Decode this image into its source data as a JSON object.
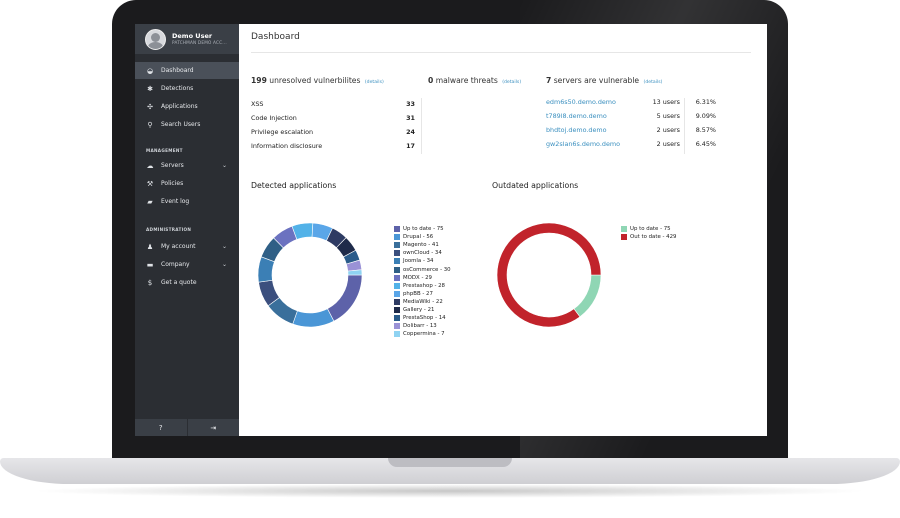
{
  "user": {
    "name": "Demo User",
    "subtitle": "PATCHMAN DEMO ACC..."
  },
  "sidebar": {
    "items": [
      {
        "label": "Dashboard",
        "icon": "dashboard-icon",
        "glyph": "◒"
      },
      {
        "label": "Detections",
        "icon": "bug-icon",
        "glyph": "✱"
      },
      {
        "label": "Applications",
        "icon": "puzzle-icon",
        "glyph": "✣"
      },
      {
        "label": "Search Users",
        "icon": "search-icon",
        "glyph": "⚲"
      }
    ],
    "management_label": "MANAGEMENT",
    "management": [
      {
        "label": "Servers",
        "icon": "cloud-icon",
        "glyph": "☁"
      },
      {
        "label": "Policies",
        "icon": "gavel-icon",
        "glyph": "⚒"
      },
      {
        "label": "Event log",
        "icon": "book-icon",
        "glyph": "▰"
      }
    ],
    "administration_label": "ADMINISTRATION",
    "administration": [
      {
        "label": "My account",
        "icon": "user-icon",
        "glyph": "♟"
      },
      {
        "label": "Company",
        "icon": "briefcase-icon",
        "glyph": "▬"
      },
      {
        "label": "Get a quote",
        "icon": "money-icon",
        "glyph": "$"
      }
    ],
    "bottom": {
      "help": "?",
      "logout": "⇥"
    }
  },
  "page": {
    "title": "Dashboard"
  },
  "summary": {
    "vuln_count": "199",
    "vuln_text": "unresolved vulnerbilites",
    "malware_count": "0",
    "malware_text": "malware threats",
    "servers_count": "7",
    "servers_text": "servers are vulnerable",
    "details": "(details)"
  },
  "vulnerabilities": [
    {
      "name": "XSS",
      "count": "33"
    },
    {
      "name": "Code Injection",
      "count": "31"
    },
    {
      "name": "Privilege escalation",
      "count": "24"
    },
    {
      "name": "Information disclosure",
      "count": "17"
    }
  ],
  "servers": [
    {
      "host": "edm6s50.demo.demo",
      "users": "13 users",
      "pct": "6.31%"
    },
    {
      "host": "t789l8.demo.demo",
      "users": "5 users",
      "pct": "9.09%"
    },
    {
      "host": "bhdtoj.demo.demo",
      "users": "2 users",
      "pct": "8.57%"
    },
    {
      "host": "gw2slan6s.demo.demo",
      "users": "2 users",
      "pct": "6.45%"
    }
  ],
  "sections": {
    "detected": "Detected applications",
    "outdated": "Outdated applications"
  },
  "chart_data": [
    {
      "type": "pie",
      "title": "Detected applications",
      "categories": [
        "Up to date",
        "Drupal",
        "Magento",
        "ownCloud",
        "Joomla",
        "osCommerce",
        "MODX",
        "Prestashop",
        "phpBB",
        "MediaWiki",
        "Gallery",
        "PrestaShop",
        "Dolibarr",
        "Coppermina"
      ],
      "values": [
        75,
        56,
        41,
        34,
        34,
        30,
        29,
        28,
        27,
        22,
        21,
        14,
        13,
        7
      ],
      "colors": [
        "#5d62a9",
        "#4a96d6",
        "#3a6f9b",
        "#3b4f7e",
        "#3b7fb5",
        "#2f5f86",
        "#6b72c0",
        "#52b2e8",
        "#5aa6e8",
        "#2e3b63",
        "#1f2b4a",
        "#2a5b8a",
        "#9a92d6",
        "#8fd3f2"
      ],
      "labels": [
        "Up to date - 75",
        "Drupal - 56",
        "Magento - 41",
        "ownCloud - 34",
        "Joomla - 34",
        "osCommerce - 30",
        "MODX - 29",
        "Prestashop - 28",
        "phpBB - 27",
        "MediaWiki - 22",
        "Gallery - 21",
        "PrestaShop - 14",
        "Dolibarr - 13",
        "Coppermina - 7"
      ],
      "legend": "right"
    },
    {
      "type": "pie",
      "title": "Outdated applications",
      "categories": [
        "Up to date",
        "Out to date"
      ],
      "values": [
        75,
        429
      ],
      "colors": [
        "#8fd6b4",
        "#c1232b"
      ],
      "labels": [
        "Up to date - 75",
        "Out to date - 429"
      ],
      "legend": "right"
    }
  ]
}
